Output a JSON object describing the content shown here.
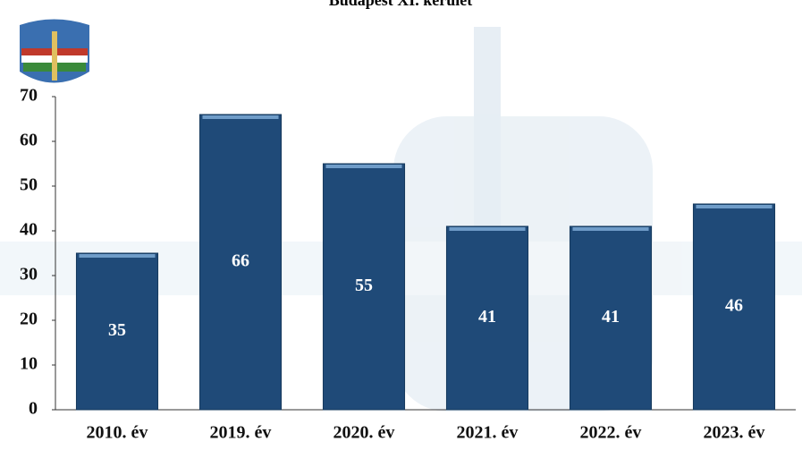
{
  "chart_data": {
    "type": "bar",
    "title": "Budapest XI. kerület",
    "categories": [
      "2010. év",
      "2019. év",
      "2020. év",
      "2021. év",
      "2022. év",
      "2023. év"
    ],
    "values": [
      35,
      66,
      55,
      41,
      41,
      46
    ],
    "color": "#1f4a78",
    "ylim": [
      0,
      70
    ],
    "yticks": [
      0,
      10,
      20,
      30,
      40,
      50,
      60,
      70
    ],
    "grid": false
  }
}
